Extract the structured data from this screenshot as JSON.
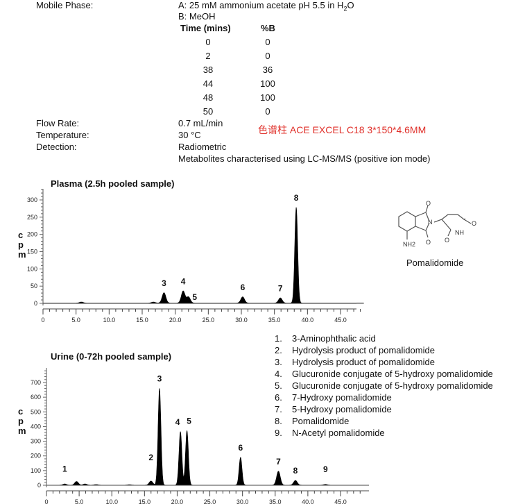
{
  "conditions": {
    "mobile_phase_label": "Mobile Phase:",
    "mobile_a": "A: 25 mM ammonium acetate pH 5.5 in H",
    "mobile_a_sub": "2",
    "mobile_a_end": "O",
    "mobile_b": "B: MeOH",
    "gradient_headers": [
      "Time (mins)",
      "%B"
    ],
    "gradient_rows": [
      [
        "0",
        "0"
      ],
      [
        "2",
        "0"
      ],
      [
        "38",
        "36"
      ],
      [
        "44",
        "100"
      ],
      [
        "48",
        "100"
      ],
      [
        "50",
        "0"
      ]
    ],
    "flow_label": "Flow Rate:",
    "flow_value": "0.7 mL/min",
    "temp_label": "Temperature:",
    "temp_value": "30 °C",
    "detection_label": "Detection:",
    "detection_value": "Radiometric",
    "detection_note": "Metabolites characterised using LC-MS/MS (positive ion mode)",
    "column_note": "色谱柱 ACE EXCEL C18 3*150*4.6MM",
    "column_note_color": "#e0302a"
  },
  "structure": {
    "name": "Pomalidomide",
    "atoms": [
      "O",
      "N",
      "O",
      "O",
      "NH",
      "NH2"
    ]
  },
  "legend": [
    {
      "n": "1.",
      "text": "3-Aminophthalic acid"
    },
    {
      "n": "2.",
      "text": "Hydrolysis product of pomalidomide"
    },
    {
      "n": "3.",
      "text": "Hydrolysis product of pomalidomide"
    },
    {
      "n": "4.",
      "text": "Glucuronide conjugate of 5-hydroxy pomalidomide"
    },
    {
      "n": "5.",
      "text": "Glucuronide conjugate of 5-hydroxy pomalidomide"
    },
    {
      "n": "6.",
      "text": "7-Hydroxy pomalidomide"
    },
    {
      "n": "7.",
      "text": "5-Hydroxy pomalidomide"
    },
    {
      "n": "8.",
      "text": "Pomalidomide"
    },
    {
      "n": "9.",
      "text": "N-Acetyl pomalidomide"
    }
  ],
  "chart_data": [
    {
      "type": "line",
      "title": "Plasma (2.5h pooled sample)",
      "ylabel": "cpm",
      "xlim": [
        0,
        48.5
      ],
      "ylim": [
        0,
        330
      ],
      "xticks": [
        "0",
        "5.0",
        "10.0",
        "15.0",
        "20.0",
        "25.0",
        "30.0",
        "35.0",
        "40.0",
        "45.0"
      ],
      "yticks": [
        "0",
        "50",
        "100",
        "150",
        "200",
        "250",
        "300"
      ],
      "peaks": [
        {
          "label": "3",
          "rt": 18.3,
          "height": 30
        },
        {
          "label": "4",
          "rt": 21.2,
          "height": 35
        },
        {
          "label": "5",
          "rt": 22.0,
          "height": 18
        },
        {
          "label": "6",
          "rt": 30.2,
          "height": 18
        },
        {
          "label": "7",
          "rt": 35.9,
          "height": 15
        },
        {
          "label": "8",
          "rt": 38.3,
          "height": 278
        }
      ],
      "minor_peaks": [
        {
          "rt": 5.8,
          "height": 3
        },
        {
          "rt": 16.7,
          "height": 3
        }
      ]
    },
    {
      "type": "line",
      "title": "Urine (0-72h pooled sample)",
      "ylabel": "cpm",
      "xlim": [
        0,
        48.5
      ],
      "ylim": [
        0,
        780
      ],
      "xticks": [
        "0",
        "5.0",
        "10.0",
        "15.0",
        "20.0",
        "25.0",
        "30.0",
        "35.0",
        "40.0",
        "45.0"
      ],
      "yticks": [
        "0",
        "100",
        "200",
        "300",
        "400",
        "500",
        "600",
        "700"
      ],
      "peaks": [
        {
          "label": "1",
          "rt": 2.8,
          "height": 8
        },
        {
          "label": "2",
          "rt": 16.0,
          "height": 28
        },
        {
          "label": "3",
          "rt": 17.3,
          "height": 660
        },
        {
          "label": "4",
          "rt": 20.5,
          "height": 365
        },
        {
          "label": "5",
          "rt": 21.5,
          "height": 372
        },
        {
          "label": "6",
          "rt": 29.7,
          "height": 190
        },
        {
          "label": "7",
          "rt": 35.5,
          "height": 95
        },
        {
          "label": "8",
          "rt": 38.1,
          "height": 32
        },
        {
          "label": "9",
          "rt": 42.7,
          "height": 5
        }
      ],
      "minor_peaks": [
        {
          "rt": 4.6,
          "height": 25
        },
        {
          "rt": 5.9,
          "height": 8
        },
        {
          "rt": 7.6,
          "height": 4
        },
        {
          "rt": 12.7,
          "height": 3
        }
      ]
    }
  ]
}
